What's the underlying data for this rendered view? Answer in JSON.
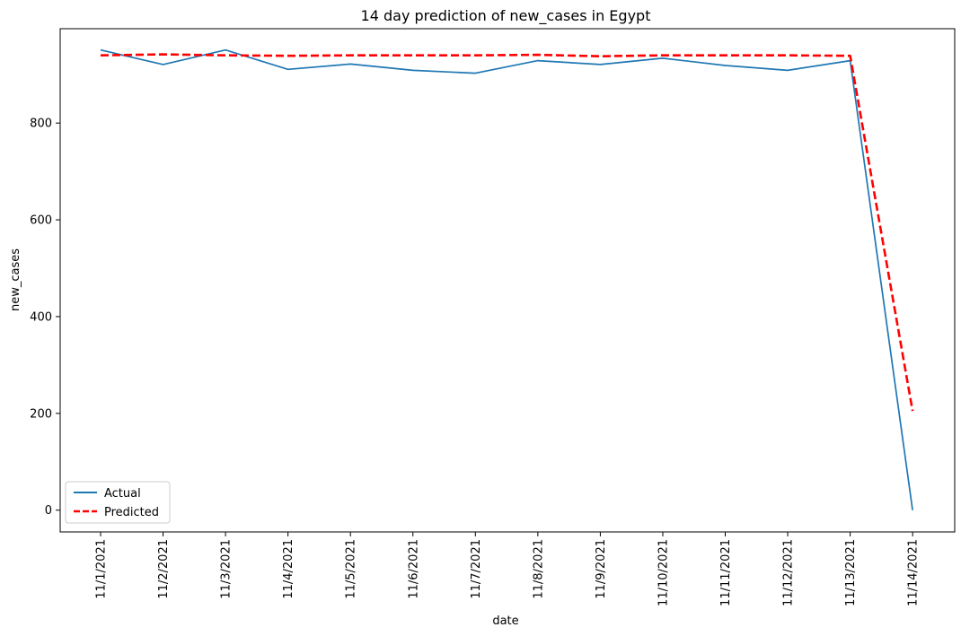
{
  "chart_data": {
    "type": "line",
    "title": "14 day prediction of new_cases in Egypt",
    "xlabel": "date",
    "ylabel": "new_cases",
    "categories": [
      "11/1/2021",
      "11/2/2021",
      "11/3/2021",
      "11/4/2021",
      "11/5/2021",
      "11/6/2021",
      "11/7/2021",
      "11/8/2021",
      "11/9/2021",
      "11/10/2021",
      "11/11/2021",
      "11/12/2021",
      "11/13/2021",
      "11/14/2021"
    ],
    "ylim": [
      -45,
      995
    ],
    "yticks": [
      0,
      200,
      400,
      600,
      800
    ],
    "grid": false,
    "legend_position": "lower-left",
    "series": [
      {
        "name": "Actual",
        "color": "#1f77b4",
        "style": "solid",
        "values": [
          951,
          921,
          951,
          911,
          922,
          909,
          903,
          929,
          921,
          934,
          919,
          909,
          929,
          0
        ]
      },
      {
        "name": "Predicted",
        "color": "#ff0000",
        "style": "dashed",
        "values": [
          940,
          942,
          940,
          939,
          940,
          940,
          940,
          941,
          938,
          940,
          940,
          940,
          939,
          205
        ]
      }
    ]
  }
}
